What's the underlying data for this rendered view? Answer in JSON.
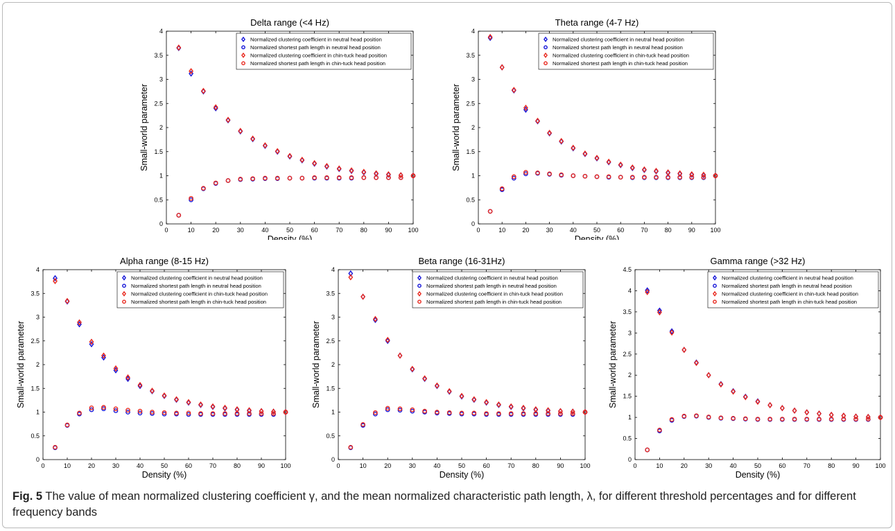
{
  "caption": {
    "label": "Fig. 5",
    "text": " The value of mean normalized clustering coefficient γ, and the mean normalized characteristic path length, λ, for different threshold percentages and for different frequency bands"
  },
  "colors": {
    "neutral": "#1414d8",
    "chintuck": "#e8281e",
    "axis": "#000000"
  },
  "chart_data": [
    {
      "type": "scatter",
      "title": "Delta range (<4 Hz)",
      "xlabel": "Density (%)",
      "ylabel": "Small-world parameter",
      "xlim": [
        0,
        100
      ],
      "ylim": [
        0,
        4
      ],
      "xticks": [
        0,
        10,
        20,
        30,
        40,
        50,
        60,
        70,
        80,
        90,
        100
      ],
      "yticks": [
        0,
        0.5,
        1,
        1.5,
        2,
        2.5,
        3,
        3.5,
        4
      ],
      "legend": "top-right",
      "x": [
        5,
        10,
        15,
        20,
        25,
        30,
        35,
        40,
        45,
        50,
        55,
        60,
        65,
        70,
        75,
        80,
        85,
        90,
        95,
        100
      ],
      "series": [
        {
          "name": "Normalized clustering coefficient in neutral head position",
          "marker": "diamond",
          "color": "neutral",
          "values": [
            3.65,
            3.12,
            2.75,
            2.4,
            2.15,
            1.92,
            1.76,
            1.62,
            1.5,
            1.4,
            1.32,
            1.25,
            1.19,
            1.14,
            1.1,
            1.07,
            1.04,
            1.02,
            1.01,
            1.0
          ]
        },
        {
          "name": "Normalized shortest path length in neutral head position",
          "marker": "circle",
          "color": "neutral",
          "values": [
            0.18,
            0.5,
            0.73,
            0.84,
            0.9,
            0.92,
            0.93,
            0.94,
            0.94,
            0.95,
            0.95,
            0.95,
            0.95,
            0.95,
            0.95,
            0.96,
            0.96,
            0.96,
            0.96,
            1.0
          ]
        },
        {
          "name": "Normalized clustering coefficient in chin-tuck head position",
          "marker": "diamond",
          "color": "chintuck",
          "values": [
            3.66,
            3.17,
            2.76,
            2.42,
            2.16,
            1.93,
            1.77,
            1.63,
            1.51,
            1.41,
            1.33,
            1.26,
            1.2,
            1.15,
            1.11,
            1.08,
            1.05,
            1.03,
            1.01,
            1.0
          ]
        },
        {
          "name": "Normalized shortest path length in chin-tuck head position",
          "marker": "circle",
          "color": "chintuck",
          "values": [
            0.18,
            0.53,
            0.74,
            0.85,
            0.9,
            0.93,
            0.94,
            0.95,
            0.95,
            0.95,
            0.95,
            0.96,
            0.96,
            0.96,
            0.96,
            0.96,
            0.96,
            0.96,
            0.96,
            1.0
          ]
        }
      ]
    },
    {
      "type": "scatter",
      "title": "Theta range (4-7 Hz)",
      "xlabel": "Density (%)",
      "ylabel": "Small-world parameter",
      "xlim": [
        0,
        100
      ],
      "ylim": [
        0,
        4
      ],
      "xticks": [
        0,
        10,
        20,
        30,
        40,
        50,
        60,
        70,
        80,
        90,
        100
      ],
      "yticks": [
        0,
        0.5,
        1,
        1.5,
        2,
        2.5,
        3,
        3.5,
        4
      ],
      "legend": "top-right",
      "x": [
        5,
        10,
        15,
        20,
        25,
        30,
        35,
        40,
        45,
        50,
        55,
        60,
        65,
        70,
        75,
        80,
        85,
        90,
        95,
        100
      ],
      "series": [
        {
          "name": "Normalized clustering coefficient in neutral head position",
          "marker": "diamond",
          "color": "neutral",
          "values": [
            3.86,
            3.25,
            2.77,
            2.37,
            2.13,
            1.88,
            1.71,
            1.57,
            1.45,
            1.36,
            1.28,
            1.22,
            1.16,
            1.12,
            1.09,
            1.06,
            1.04,
            1.02,
            1.01,
            1.0
          ]
        },
        {
          "name": "Normalized shortest path length in neutral head position",
          "marker": "circle",
          "color": "neutral",
          "values": [
            0.26,
            0.71,
            0.95,
            1.04,
            1.05,
            1.03,
            1.01,
            1.0,
            0.99,
            0.98,
            0.97,
            0.97,
            0.96,
            0.96,
            0.96,
            0.96,
            0.96,
            0.96,
            0.96,
            1.0
          ]
        },
        {
          "name": "Normalized clustering coefficient in chin-tuck head position",
          "marker": "diamond",
          "color": "chintuck",
          "values": [
            3.88,
            3.25,
            2.78,
            2.41,
            2.14,
            1.89,
            1.72,
            1.58,
            1.46,
            1.37,
            1.29,
            1.23,
            1.17,
            1.13,
            1.1,
            1.07,
            1.05,
            1.03,
            1.02,
            1.0
          ]
        },
        {
          "name": "Normalized shortest path length in chin-tuck head position",
          "marker": "circle",
          "color": "chintuck",
          "values": [
            0.26,
            0.73,
            0.98,
            1.07,
            1.06,
            1.04,
            1.02,
            1.0,
            0.99,
            0.98,
            0.98,
            0.97,
            0.97,
            0.97,
            0.97,
            0.97,
            0.97,
            0.97,
            0.97,
            1.0
          ]
        }
      ]
    },
    {
      "type": "scatter",
      "title": "Alpha range (8-15 Hz)",
      "xlabel": "Density (%)",
      "ylabel": "Small-world parameter",
      "xlim": [
        0,
        100
      ],
      "ylim": [
        0,
        4
      ],
      "xticks": [
        0,
        10,
        20,
        30,
        40,
        50,
        60,
        70,
        80,
        90,
        100
      ],
      "yticks": [
        0,
        0.5,
        1,
        1.5,
        2,
        2.5,
        3,
        3.5,
        4
      ],
      "legend": "top-right",
      "x": [
        5,
        10,
        15,
        20,
        25,
        30,
        35,
        40,
        45,
        50,
        55,
        60,
        65,
        70,
        75,
        80,
        85,
        90,
        95,
        100
      ],
      "series": [
        {
          "name": "Normalized clustering coefficient in neutral head position",
          "marker": "diamond",
          "color": "neutral",
          "values": [
            3.82,
            3.33,
            2.85,
            2.43,
            2.15,
            1.88,
            1.7,
            1.55,
            1.44,
            1.34,
            1.26,
            1.2,
            1.15,
            1.11,
            1.08,
            1.05,
            1.03,
            1.02,
            1.01,
            1.0
          ]
        },
        {
          "name": "Normalized shortest path length in neutral head position",
          "marker": "circle",
          "color": "neutral",
          "values": [
            0.25,
            0.72,
            0.96,
            1.05,
            1.07,
            1.03,
            1.0,
            0.98,
            0.97,
            0.96,
            0.96,
            0.95,
            0.95,
            0.95,
            0.95,
            0.95,
            0.95,
            0.95,
            0.95,
            1.0
          ]
        },
        {
          "name": "Normalized clustering coefficient in chin-tuck head position",
          "marker": "diamond",
          "color": "chintuck",
          "values": [
            3.76,
            3.34,
            2.89,
            2.48,
            2.19,
            1.92,
            1.73,
            1.57,
            1.45,
            1.35,
            1.27,
            1.21,
            1.16,
            1.12,
            1.09,
            1.06,
            1.04,
            1.02,
            1.01,
            1.0
          ]
        },
        {
          "name": "Normalized shortest path length in chin-tuck head position",
          "marker": "circle",
          "color": "chintuck",
          "values": [
            0.26,
            0.73,
            0.98,
            1.09,
            1.1,
            1.07,
            1.04,
            1.02,
            1.0,
            0.99,
            0.98,
            0.98,
            0.97,
            0.97,
            0.97,
            0.97,
            0.97,
            0.97,
            0.97,
            1.0
          ]
        }
      ]
    },
    {
      "type": "scatter",
      "title": "Beta range (16-31Hz)",
      "xlabel": "Density (%)",
      "ylabel": "Small-world parameter",
      "xlim": [
        0,
        100
      ],
      "ylim": [
        0,
        4
      ],
      "xticks": [
        0,
        10,
        20,
        30,
        40,
        50,
        60,
        70,
        80,
        90,
        100
      ],
      "yticks": [
        0,
        0.5,
        1,
        1.5,
        2,
        2.5,
        3,
        3.5,
        4
      ],
      "legend": "top-right",
      "x": [
        5,
        10,
        15,
        20,
        25,
        30,
        35,
        40,
        45,
        50,
        55,
        60,
        65,
        70,
        75,
        80,
        85,
        90,
        95,
        100
      ],
      "series": [
        {
          "name": "Normalized clustering coefficient in neutral head position",
          "marker": "diamond",
          "color": "neutral",
          "values": [
            3.92,
            3.43,
            2.94,
            2.5,
            2.19,
            1.9,
            1.7,
            1.55,
            1.43,
            1.33,
            1.26,
            1.2,
            1.15,
            1.11,
            1.08,
            1.05,
            1.03,
            1.02,
            1.01,
            1.0
          ]
        },
        {
          "name": "Normalized shortest path length in neutral head position",
          "marker": "circle",
          "color": "neutral",
          "values": [
            0.25,
            0.72,
            0.96,
            1.05,
            1.04,
            1.02,
            1.0,
            0.98,
            0.97,
            0.96,
            0.96,
            0.95,
            0.95,
            0.95,
            0.95,
            0.95,
            0.95,
            0.95,
            0.95,
            1.0
          ]
        },
        {
          "name": "Normalized clustering coefficient in chin-tuck head position",
          "marker": "diamond",
          "color": "chintuck",
          "values": [
            3.84,
            3.43,
            2.96,
            2.52,
            2.19,
            1.91,
            1.71,
            1.56,
            1.44,
            1.34,
            1.27,
            1.21,
            1.16,
            1.12,
            1.09,
            1.06,
            1.04,
            1.02,
            1.01,
            1.0
          ]
        },
        {
          "name": "Normalized shortest path length in chin-tuck head position",
          "marker": "circle",
          "color": "chintuck",
          "values": [
            0.26,
            0.74,
            0.99,
            1.08,
            1.07,
            1.05,
            1.02,
            1.0,
            0.99,
            0.98,
            0.98,
            0.97,
            0.97,
            0.97,
            0.97,
            0.97,
            0.97,
            0.97,
            0.97,
            1.0
          ]
        }
      ]
    },
    {
      "type": "scatter",
      "title": "Gamma range (>32 Hz)",
      "xlabel": "Density (%)",
      "ylabel": "Small-world parameter",
      "xlim": [
        0,
        100
      ],
      "ylim": [
        0,
        4.5
      ],
      "xticks": [
        0,
        10,
        20,
        30,
        40,
        50,
        60,
        70,
        80,
        90,
        100
      ],
      "yticks": [
        0,
        0.5,
        1,
        1.5,
        2,
        2.5,
        3,
        3.5,
        4,
        4.5
      ],
      "legend": "top-right",
      "x": [
        5,
        10,
        15,
        20,
        25,
        30,
        35,
        40,
        45,
        50,
        55,
        60,
        65,
        70,
        75,
        80,
        85,
        90,
        95,
        100
      ],
      "series": [
        {
          "name": "Normalized clustering coefficient in neutral head position",
          "marker": "diamond",
          "color": "neutral",
          "values": [
            4.01,
            3.53,
            3.04,
            2.6,
            2.3,
            2.0,
            1.79,
            1.62,
            1.49,
            1.38,
            1.29,
            1.22,
            1.16,
            1.12,
            1.09,
            1.06,
            1.04,
            1.02,
            1.01,
            1.0
          ]
        },
        {
          "name": "Normalized shortest path length in neutral head position",
          "marker": "circle",
          "color": "neutral",
          "values": [
            0.23,
            0.68,
            0.93,
            1.02,
            1.03,
            1.0,
            0.98,
            0.97,
            0.96,
            0.95,
            0.95,
            0.95,
            0.95,
            0.95,
            0.95,
            0.95,
            0.95,
            0.95,
            0.95,
            1.0
          ]
        },
        {
          "name": "Normalized clustering coefficient in chin-tuck head position",
          "marker": "diamond",
          "color": "chintuck",
          "values": [
            3.97,
            3.49,
            3.01,
            2.6,
            2.29,
            2.0,
            1.78,
            1.61,
            1.48,
            1.37,
            1.29,
            1.22,
            1.16,
            1.12,
            1.09,
            1.06,
            1.04,
            1.02,
            1.01,
            1.0
          ]
        },
        {
          "name": "Normalized shortest path length in chin-tuck head position",
          "marker": "circle",
          "color": "chintuck",
          "values": [
            0.23,
            0.7,
            0.95,
            1.03,
            1.04,
            1.01,
            0.99,
            0.98,
            0.97,
            0.96,
            0.96,
            0.96,
            0.96,
            0.96,
            0.96,
            0.96,
            0.96,
            0.96,
            0.96,
            1.0
          ]
        }
      ]
    }
  ]
}
